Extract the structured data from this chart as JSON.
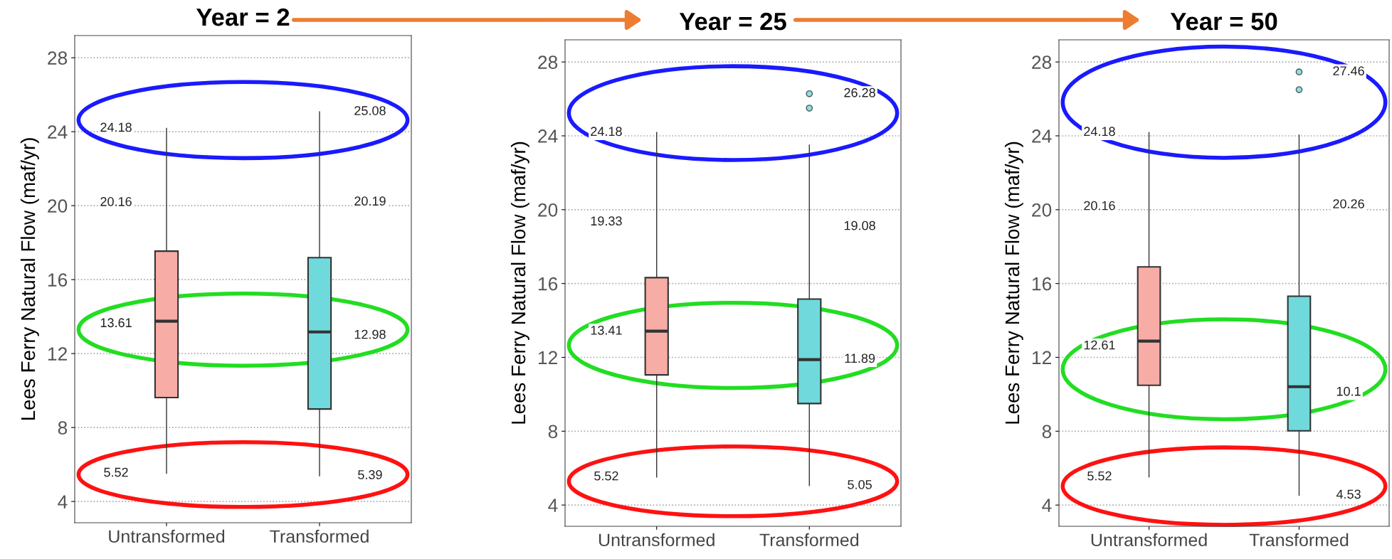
{
  "chart_data": [
    {
      "type": "box",
      "title": "Year = 2",
      "ylabel": "Lees Ferry Natural Flow (maf/yr)",
      "categories": [
        "Untransformed",
        "Transformed"
      ],
      "colors": [
        "#f8aca6",
        "#6fd9dc"
      ],
      "ylim": [
        2.85,
        29.2
      ],
      "yticks": [
        4,
        8,
        12,
        16,
        20,
        24,
        28
      ],
      "grid": "y",
      "boxes": [
        {
          "low": 5.52,
          "q1": 9.62,
          "median": 13.75,
          "q3": 17.54,
          "high": 24.18
        },
        {
          "low": 5.39,
          "q1": 9.0,
          "median": 13.17,
          "q3": 17.19,
          "high": 25.08
        }
      ],
      "annotations": [
        "24.18",
        "20.16",
        "13.61",
        "5.52",
        "25.08",
        "20.19",
        "12.98",
        "5.39"
      ]
    },
    {
      "type": "box",
      "title": "Year = 25",
      "ylabel": "Lees Ferry Natural Flow (maf/yr)",
      "categories": [
        "Untransformed",
        "Transformed"
      ],
      "colors": [
        "#f8aca6",
        "#6fd9dc"
      ],
      "ylim": [
        2.85,
        29.2
      ],
      "yticks": [
        4,
        8,
        12,
        16,
        20,
        24,
        28
      ],
      "grid": "y",
      "boxes": [
        {
          "low": 5.52,
          "q1": 11.05,
          "median": 13.42,
          "q3": 16.32,
          "high": 24.18
        },
        {
          "low": 5.05,
          "q1": 9.5,
          "median": 11.88,
          "q3": 15.16,
          "high": 23.5,
          "outliers": [
            25.5,
            26.28
          ]
        }
      ],
      "annotations": [
        "24.18",
        "19.33",
        "13.41",
        "5.52",
        "26.28",
        "19.08",
        "11.89",
        "5.05"
      ]
    },
    {
      "type": "box",
      "title": "Year = 50",
      "ylabel": "Lees Ferry Natural Flow (maf/yr)",
      "categories": [
        "Untransformed",
        "Transformed"
      ],
      "colors": [
        "#f8aca6",
        "#6fd9dc"
      ],
      "ylim": [
        2.85,
        29.2
      ],
      "yticks": [
        4,
        8,
        12,
        16,
        20,
        24,
        28
      ],
      "grid": "y",
      "boxes": [
        {
          "low": 5.52,
          "q1": 10.49,
          "median": 12.88,
          "q3": 16.9,
          "high": 24.18
        },
        {
          "low": 4.53,
          "q1": 8.02,
          "median": 10.41,
          "q3": 15.31,
          "high": 24.04,
          "outliers": [
            26.5,
            27.46
          ]
        }
      ],
      "annotations": [
        "24.18",
        "20.16",
        "12.61",
        "5.52",
        "27.46",
        "20.26",
        "10.1",
        "4.53"
      ]
    }
  ]
}
